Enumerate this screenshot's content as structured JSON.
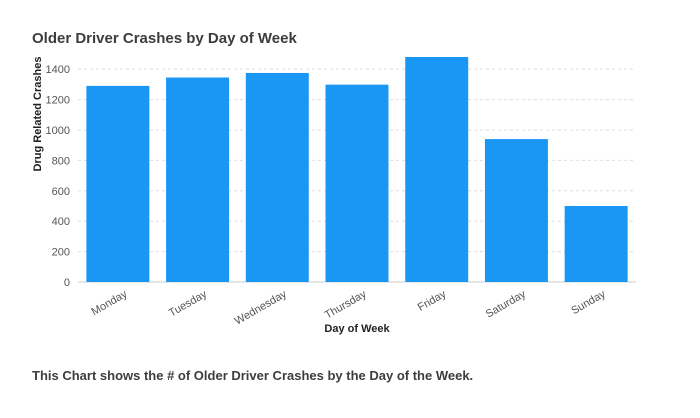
{
  "chart_data": {
    "type": "bar",
    "title": "Older Driver Crashes by Day of Week",
    "xlabel": "Day of Week",
    "ylabel": "Drug Related Crashes",
    "categories": [
      "Monday",
      "Tuesday",
      "Wednesday",
      "Thursday",
      "Friday",
      "Saturday",
      "Sunday"
    ],
    "values": [
      1290,
      1345,
      1375,
      1298,
      1480,
      940,
      500
    ],
    "yticks": [
      0,
      200,
      400,
      600,
      800,
      1000,
      1200,
      1400
    ],
    "ylim": [
      0,
      1480
    ],
    "grid": true,
    "bar_color": "#1a96f5",
    "caption": "This Chart shows the # of Older Driver Crashes by the Day of the Week."
  }
}
